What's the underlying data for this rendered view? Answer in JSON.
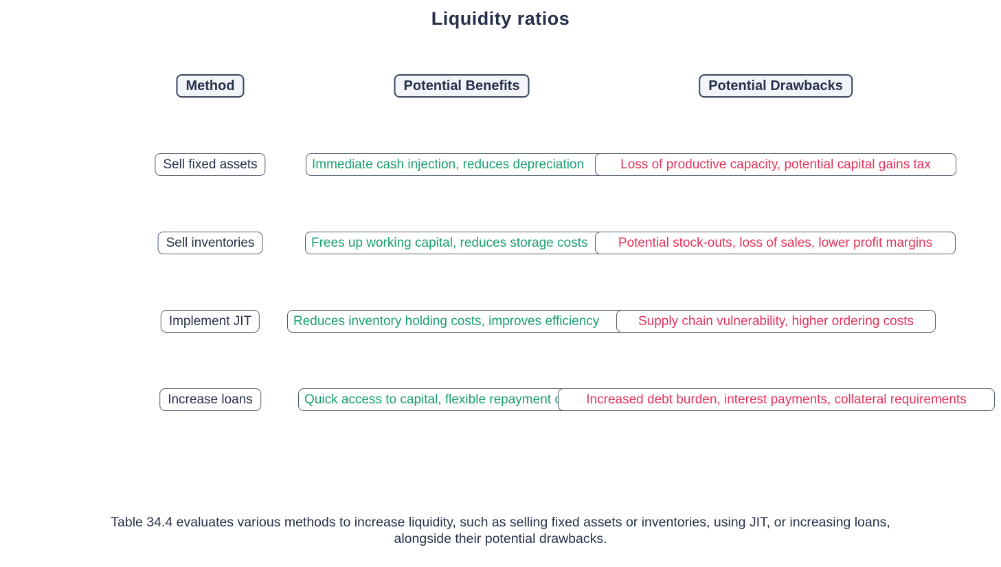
{
  "title": "Liquidity ratios",
  "columns": {
    "method": "Method",
    "benefits": "Potential Benefits",
    "drawbacks": "Potential Drawbacks"
  },
  "rows": [
    {
      "method": "Sell fixed assets",
      "benefit": "Immediate cash injection, reduces depreciation",
      "drawback": "Loss of productive capacity, potential capital gains tax"
    },
    {
      "method": "Sell inventories",
      "benefit": "Frees up working capital, reduces storage costs",
      "drawback": "Potential stock-outs, loss of sales, lower profit margins"
    },
    {
      "method": "Implement JIT",
      "benefit": "Reduces inventory holding costs, improves efficiency",
      "drawback": "Supply chain vulnerability, higher ordering costs"
    },
    {
      "method": "Increase loans",
      "benefit": "Quick access to capital, flexible repayment options",
      "drawback": "Increased debt burden, interest payments, collateral requirements"
    }
  ],
  "caption": {
    "line1": "Table 34.4 evaluates various methods to increase liquidity, such as selling fixed assets or inventories, using JIT, or increasing loans,",
    "line2": "alongside their potential drawbacks."
  },
  "colors": {
    "benefit_text": "#189e72",
    "drawback_text": "#e5325a",
    "heading_text": "#26304a",
    "node_border": "#4e5a6e",
    "header_border": "#39435c",
    "header_fill": "#f2f4fa"
  }
}
